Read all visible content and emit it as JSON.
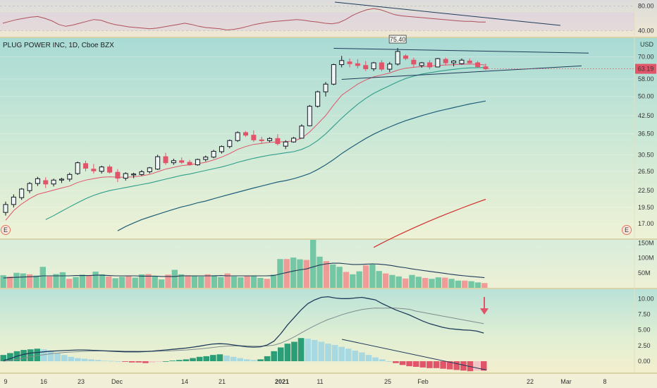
{
  "chart_title": "PLUG POWER INC, 1D, Cboe BZX",
  "currency": "USD",
  "colors": {
    "up": "#131722",
    "down": "#e0556a",
    "ma_fast": "#e0556a",
    "ma_mid": "#2e9e8a",
    "ma_slow": "#1f5f7a",
    "ma_long": "#d32f2f",
    "trend": "#1f3b5a",
    "vol_up": "#5fbf9b",
    "vol_down": "#f08c8c",
    "macd": "#1f3b5a",
    "signal": "#7f8c8d",
    "hist_pos_strong": "#2b9e78",
    "hist_pos_weak": "#a8d8e0",
    "hist_neg_strong": "#e0556a",
    "hist_neg_weak": "#f2c4c4",
    "price_badge": "#e0556a",
    "arrow": "#e0556a"
  },
  "x_axis": {
    "labels": [
      "9",
      "16",
      "23",
      "Dec",
      "14",
      "21",
      "2021",
      "11",
      "25",
      "Feb",
      "22",
      "Mar",
      "8"
    ]
  },
  "chart_data": [
    {
      "panel": "rsi",
      "type": "line",
      "y_ticks": [
        "80.00",
        "40.00"
      ],
      "ylim": [
        30,
        90
      ],
      "values": [
        52,
        55,
        58,
        60,
        62,
        63,
        60,
        56,
        50,
        47,
        49,
        52,
        55,
        58,
        57,
        53,
        50,
        48,
        46,
        45,
        44,
        43,
        44,
        46,
        48,
        50,
        52,
        50,
        47,
        45,
        44,
        43,
        41,
        42,
        44,
        47,
        50,
        52,
        54,
        55,
        56,
        57,
        58,
        57,
        55,
        54,
        52,
        51,
        53,
        58,
        65,
        70,
        74,
        76,
        74,
        70,
        66,
        64,
        63,
        62,
        61,
        60,
        59,
        58,
        57,
        56,
        55,
        55,
        54,
        54
      ]
    },
    {
      "panel": "price",
      "type": "candlestick",
      "y_ticks": [
        "70.00",
        "58.00",
        "50.00",
        "42.50",
        "36.50",
        "30.50",
        "26.50",
        "22.50",
        "19.50",
        "17.00"
      ],
      "ylim": [
        15,
        82
      ],
      "annotations": [
        "75.40",
        "63.19"
      ],
      "ohlc": [
        [
          18.7,
          20.5,
          18.2,
          20.0
        ],
        [
          20.0,
          21.8,
          19.5,
          21.3
        ],
        [
          21.2,
          23.0,
          20.8,
          22.8
        ],
        [
          22.5,
          24.2,
          22.0,
          23.9
        ],
        [
          23.9,
          25.3,
          23.4,
          24.9
        ],
        [
          24.5,
          25.2,
          23.0,
          23.8
        ],
        [
          23.8,
          24.9,
          23.3,
          24.6
        ],
        [
          24.6,
          25.1,
          24.0,
          24.8
        ],
        [
          24.8,
          26.2,
          24.3,
          25.8
        ],
        [
          26.0,
          28.8,
          25.7,
          28.5
        ],
        [
          28.3,
          29.0,
          26.5,
          27.2
        ],
        [
          27.0,
          28.2,
          26.0,
          26.6
        ],
        [
          26.5,
          27.8,
          26.0,
          27.5
        ],
        [
          27.5,
          28.0,
          26.0,
          26.3
        ],
        [
          26.3,
          27.0,
          24.2,
          25.0
        ],
        [
          25.0,
          26.3,
          24.5,
          26.0
        ],
        [
          25.7,
          26.2,
          25.0,
          25.9
        ],
        [
          25.8,
          26.8,
          25.5,
          26.4
        ],
        [
          26.4,
          27.5,
          26.0,
          27.3
        ],
        [
          27.0,
          30.5,
          26.8,
          30.0
        ],
        [
          30.0,
          31.0,
          28.0,
          28.5
        ],
        [
          28.5,
          29.5,
          28.0,
          29.0
        ],
        [
          29.0,
          29.8,
          28.2,
          28.6
        ],
        [
          28.6,
          29.2,
          27.8,
          28.0
        ],
        [
          28.0,
          29.5,
          27.8,
          29.3
        ],
        [
          29.3,
          30.3,
          28.8,
          29.9
        ],
        [
          29.9,
          31.8,
          29.6,
          31.4
        ],
        [
          31.3,
          33.0,
          30.8,
          32.7
        ],
        [
          32.7,
          34.7,
          32.2,
          34.4
        ],
        [
          34.4,
          37.2,
          34.0,
          36.8
        ],
        [
          36.8,
          37.3,
          35.5,
          36.0
        ],
        [
          36.0,
          37.5,
          34.0,
          34.6
        ],
        [
          34.6,
          35.5,
          33.5,
          34.4
        ],
        [
          34.4,
          35.4,
          33.9,
          35.0
        ],
        [
          35.0,
          36.3,
          33.0,
          33.5
        ],
        [
          32.8,
          34.5,
          32.0,
          34.0
        ],
        [
          34.0,
          35.5,
          33.8,
          35.1
        ],
        [
          35.1,
          39.5,
          35.0,
          38.9
        ],
        [
          39.0,
          46.5,
          38.8,
          46.0
        ],
        [
          46.0,
          52.5,
          45.5,
          52.0
        ],
        [
          52.0,
          56.5,
          50.0,
          55.5
        ],
        [
          55.5,
          66.0,
          55.0,
          65.5
        ],
        [
          65.5,
          70.5,
          64.0,
          67.8
        ],
        [
          67.0,
          69.0,
          64.0,
          66.0
        ],
        [
          66.0,
          68.5,
          63.5,
          65.0
        ],
        [
          65.0,
          67.5,
          62.0,
          63.2
        ],
        [
          63.2,
          67.0,
          62.0,
          66.5
        ],
        [
          66.5,
          68.0,
          62.0,
          63.0
        ],
        [
          63.0,
          67.0,
          61.5,
          65.8
        ],
        [
          65.8,
          75.4,
          65.0,
          73.2
        ],
        [
          70.5,
          71.5,
          68.0,
          69.0
        ],
        [
          68.0,
          69.5,
          64.0,
          65.8
        ],
        [
          65.0,
          67.0,
          63.8,
          66.5
        ],
        [
          66.5,
          68.0,
          63.0,
          64.2
        ],
        [
          64.2,
          69.3,
          64.0,
          68.9
        ],
        [
          68.5,
          69.5,
          65.0,
          66.5
        ],
        [
          66.5,
          68.0,
          64.5,
          67.5
        ],
        [
          66.0,
          69.0,
          65.5,
          68.0
        ],
        [
          67.5,
          69.0,
          66.0,
          66.5
        ],
        [
          66.5,
          67.5,
          64.0,
          64.3
        ],
        [
          64.3,
          66.0,
          62.5,
          63.19
        ]
      ],
      "ma_fast": [
        17.5,
        19.0,
        20.1,
        21.0,
        21.8,
        22.2,
        22.6,
        23.0,
        23.4,
        24.1,
        24.6,
        24.9,
        25.2,
        25.3,
        25.2,
        25.2,
        25.3,
        25.5,
        25.8,
        26.4,
        27.0,
        27.4,
        27.8,
        28.0,
        28.3,
        28.6,
        29.2,
        29.9,
        30.8,
        31.9,
        32.7,
        33.3,
        33.6,
        33.9,
        34.0,
        34.1,
        34.3,
        35.1,
        37.0,
        39.6,
        42.5,
        46.5,
        50.5,
        53.0,
        55.5,
        57.5,
        59.0,
        60.0,
        61.0,
        62.5,
        63.5,
        64.0,
        64.4,
        64.6,
        65.0,
        65.3,
        65.5,
        65.7,
        65.8,
        65.6,
        65.3
      ],
      "ma_mid": [
        null,
        null,
        null,
        null,
        null,
        17.6,
        18.2,
        18.9,
        19.6,
        20.3,
        21.0,
        21.6,
        22.1,
        22.5,
        22.8,
        23.1,
        23.4,
        23.7,
        24.0,
        24.4,
        24.8,
        25.2,
        25.6,
        25.9,
        26.3,
        26.7,
        27.1,
        27.5,
        28.0,
        28.6,
        29.1,
        29.6,
        30.0,
        30.4,
        30.7,
        31.0,
        31.3,
        31.9,
        32.9,
        34.4,
        36.4,
        38.9,
        41.6,
        44.2,
        46.8,
        49.2,
        51.3,
        53.1,
        54.8,
        56.6,
        58.2,
        59.4,
        60.4,
        61.1,
        61.8,
        62.4,
        62.9,
        63.4,
        63.7,
        63.8,
        63.9
      ],
      "ma_slow": [
        null,
        null,
        null,
        null,
        null,
        null,
        null,
        null,
        null,
        null,
        null,
        null,
        null,
        null,
        16.0,
        16.6,
        17.1,
        17.6,
        18.0,
        18.4,
        18.8,
        19.2,
        19.6,
        19.9,
        20.3,
        20.6,
        21.0,
        21.4,
        21.8,
        22.2,
        22.6,
        23.0,
        23.4,
        23.8,
        24.2,
        24.5,
        24.9,
        25.4,
        26.0,
        26.9,
        28.0,
        29.3,
        30.8,
        32.2,
        33.6,
        35.0,
        36.3,
        37.5,
        38.6,
        39.7,
        40.7,
        41.6,
        42.5,
        43.3,
        44.1,
        44.8,
        45.5,
        46.2,
        46.9,
        47.5,
        48.1
      ],
      "ma_long": [
        null,
        null,
        null,
        null,
        null,
        null,
        null,
        null,
        null,
        null,
        null,
        null,
        null,
        null,
        null,
        null,
        null,
        null,
        null,
        null,
        null,
        null,
        null,
        null,
        null,
        null,
        null,
        null,
        null,
        null,
        null,
        null,
        null,
        null,
        null,
        null,
        null,
        null,
        null,
        null,
        null,
        null,
        null,
        null,
        null,
        null,
        13.9,
        14.4,
        14.9,
        15.4,
        15.9,
        16.4,
        16.9,
        17.4,
        17.9,
        18.4,
        18.9,
        19.4,
        19.9,
        20.4,
        20.9
      ]
    },
    {
      "panel": "volume",
      "type": "bar",
      "y_ticks": [
        "150M",
        "100M",
        "50M"
      ],
      "ylim": [
        0,
        160
      ],
      "values": [
        42,
        38,
        50,
        48,
        45,
        41,
        70,
        38,
        46,
        52,
        30,
        36,
        44,
        40,
        54,
        45,
        38,
        32,
        37,
        40,
        34,
        45,
        46,
        40,
        28,
        44,
        60,
        45,
        42,
        40,
        38,
        45,
        42,
        36,
        48,
        38,
        35,
        41,
        39,
        33,
        30,
        44,
        96,
        96,
        101,
        95,
        93,
        160,
        104,
        89,
        78,
        70,
        53,
        45,
        55,
        75,
        78,
        56,
        48,
        43,
        38,
        31,
        43,
        37,
        33,
        30,
        35,
        34,
        30,
        24,
        24,
        22,
        18,
        16
      ],
      "vol_ma": [
        33,
        34,
        35,
        36,
        37,
        38,
        40,
        40,
        40,
        40,
        40,
        41,
        41,
        41,
        42,
        42,
        41,
        40,
        40,
        40,
        40,
        39,
        39,
        39,
        38,
        38,
        38,
        40,
        40,
        40,
        40,
        40,
        40,
        41,
        40,
        40,
        40,
        40,
        40,
        40,
        40,
        41,
        46,
        51,
        56,
        60,
        63,
        70,
        76,
        80,
        82,
        82,
        80,
        78,
        78,
        79,
        80,
        79,
        77,
        74,
        70,
        67,
        63,
        60,
        57,
        54,
        51,
        48,
        45,
        42,
        40,
        38,
        36,
        34
      ]
    },
    {
      "panel": "macd",
      "type": "line",
      "y_ticks": [
        "10.00",
        "7.50",
        "5.00",
        "2.50",
        "0.00"
      ],
      "ylim": [
        -1.8,
        11.5
      ],
      "macd": [
        0.1,
        0.4,
        0.8,
        1.1,
        1.3,
        1.4,
        1.5,
        1.6,
        1.65,
        1.7,
        1.75,
        1.8,
        1.8,
        1.75,
        1.7,
        1.65,
        1.6,
        1.55,
        1.5,
        1.5,
        1.5,
        1.55,
        1.6,
        1.7,
        1.8,
        1.9,
        2.0,
        2.1,
        2.25,
        2.4,
        2.6,
        2.75,
        2.8,
        2.75,
        2.6,
        2.45,
        2.3,
        2.25,
        2.3,
        2.6,
        3.2,
        4.4,
        5.8,
        7.0,
        8.2,
        9.2,
        9.8,
        10.2,
        10.3,
        10.1,
        10.0,
        10.0,
        10.1,
        10.2,
        10.0,
        9.8,
        9.2,
        8.7,
        8.2,
        7.8,
        7.4,
        6.9,
        6.4,
        6.0,
        5.7,
        5.4,
        5.2,
        5.1,
        5.0,
        4.95,
        4.8,
        4.5
      ],
      "signal": [
        0.0,
        0.1,
        0.3,
        0.5,
        0.7,
        0.9,
        1.05,
        1.2,
        1.3,
        1.4,
        1.47,
        1.53,
        1.58,
        1.62,
        1.64,
        1.65,
        1.65,
        1.64,
        1.62,
        1.61,
        1.59,
        1.58,
        1.58,
        1.6,
        1.63,
        1.68,
        1.74,
        1.8,
        1.88,
        1.97,
        2.08,
        2.2,
        2.32,
        2.41,
        2.46,
        2.47,
        2.45,
        2.42,
        2.4,
        2.44,
        2.57,
        2.89,
        3.35,
        3.9,
        4.5,
        5.11,
        5.67,
        6.19,
        6.66,
        7.03,
        7.42,
        7.74,
        8.02,
        8.25,
        8.4,
        8.5,
        8.47,
        8.5,
        8.48,
        8.4,
        8.3,
        8.0,
        7.8,
        7.6,
        7.4,
        7.2,
        7.0,
        6.8,
        6.6,
        6.4,
        6.2,
        6.0
      ],
      "histogram": [
        1.0,
        1.3,
        1.6,
        1.8,
        1.9,
        2.0,
        1.9,
        1.7,
        1.3,
        1.0,
        0.7,
        0.5,
        0.4,
        0.3,
        0.2,
        0.1,
        0.05,
        0.0,
        -0.1,
        -0.2,
        -0.2,
        -0.3,
        -0.2,
        -0.1,
        0.0,
        0.1,
        0.2,
        0.3,
        0.5,
        0.7,
        0.8,
        1.0,
        1.1,
        0.9,
        0.7,
        0.5,
        0.3,
        0.2,
        0.3,
        0.8,
        1.6,
        2.2,
        2.8,
        3.1,
        3.7,
        3.6,
        3.4,
        3.1,
        2.8,
        2.6,
        2.3,
        2.0,
        1.7,
        1.4,
        1.0,
        0.6,
        0.3,
        0.0,
        -0.3,
        -0.6,
        -0.8,
        -0.9,
        -1.0,
        -1.1,
        -1.1,
        -1.2,
        -1.3,
        -1.4,
        -1.5,
        -1.6,
        -1.5,
        -1.5
      ]
    }
  ]
}
